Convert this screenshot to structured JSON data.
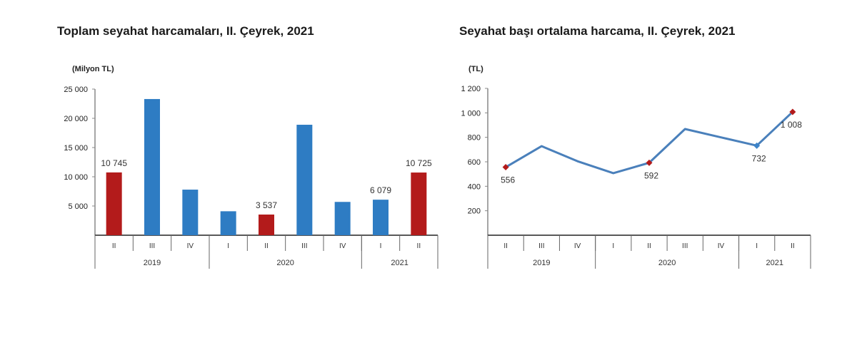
{
  "chart_data": [
    {
      "type": "bar",
      "title": "Toplam seyahat harcamaları, II. Çeyrek, 2021",
      "ylabel": "(Milyon TL)",
      "xlabel": "",
      "ylim": [
        0,
        25000
      ],
      "yticks": [
        5000,
        10000,
        15000,
        20000,
        25000
      ],
      "ytick_labels": [
        "5 000",
        "10 000",
        "15 000",
        "20 000",
        "25 000"
      ],
      "categories": [
        "II",
        "III",
        "IV",
        "I",
        "II",
        "III",
        "IV",
        "I",
        "II"
      ],
      "years": [
        {
          "label": "2019",
          "span": 3
        },
        {
          "label": "2020",
          "span": 4
        },
        {
          "label": "2021",
          "span": 2
        }
      ],
      "values": [
        10745,
        23300,
        7800,
        4100,
        3537,
        18900,
        5700,
        6079,
        10725
      ],
      "highlight": [
        true,
        false,
        false,
        false,
        true,
        false,
        false,
        false,
        true
      ],
      "data_labels": [
        "10 745",
        "",
        "",
        "",
        "3 537",
        "",
        "",
        "6 079",
        "10 725"
      ],
      "colors": {
        "normal": "#2e7cc3",
        "highlight": "#b31b1b"
      },
      "grid": false
    },
    {
      "type": "line",
      "title": "Seyahat başı ortalama harcama, II. Çeyrek, 2021",
      "ylabel": "(TL)",
      "xlabel": "",
      "ylim": [
        0,
        1200
      ],
      "yticks": [
        200,
        400,
        600,
        800,
        1000,
        1200
      ],
      "ytick_labels": [
        "200",
        "400",
        "600",
        "800",
        "1 000",
        "1 200"
      ],
      "categories": [
        "II",
        "III",
        "IV",
        "I",
        "II",
        "III",
        "IV",
        "I",
        "II"
      ],
      "years": [
        {
          "label": "2019",
          "span": 3
        },
        {
          "label": "2020",
          "span": 4
        },
        {
          "label": "2021",
          "span": 2
        }
      ],
      "values": [
        556,
        728,
        605,
        507,
        592,
        868,
        800,
        732,
        1008
      ],
      "markers": [
        "red",
        "none",
        "none",
        "none",
        "red",
        "none",
        "none",
        "blue",
        "red"
      ],
      "data_labels": [
        "556",
        "",
        "",
        "",
        "592",
        "",
        "",
        "732",
        "1 008"
      ],
      "colors": {
        "line": "#4a80bb",
        "highlight_marker": "#b31b1b",
        "marker": "#3d84c9"
      },
      "grid": false
    }
  ]
}
